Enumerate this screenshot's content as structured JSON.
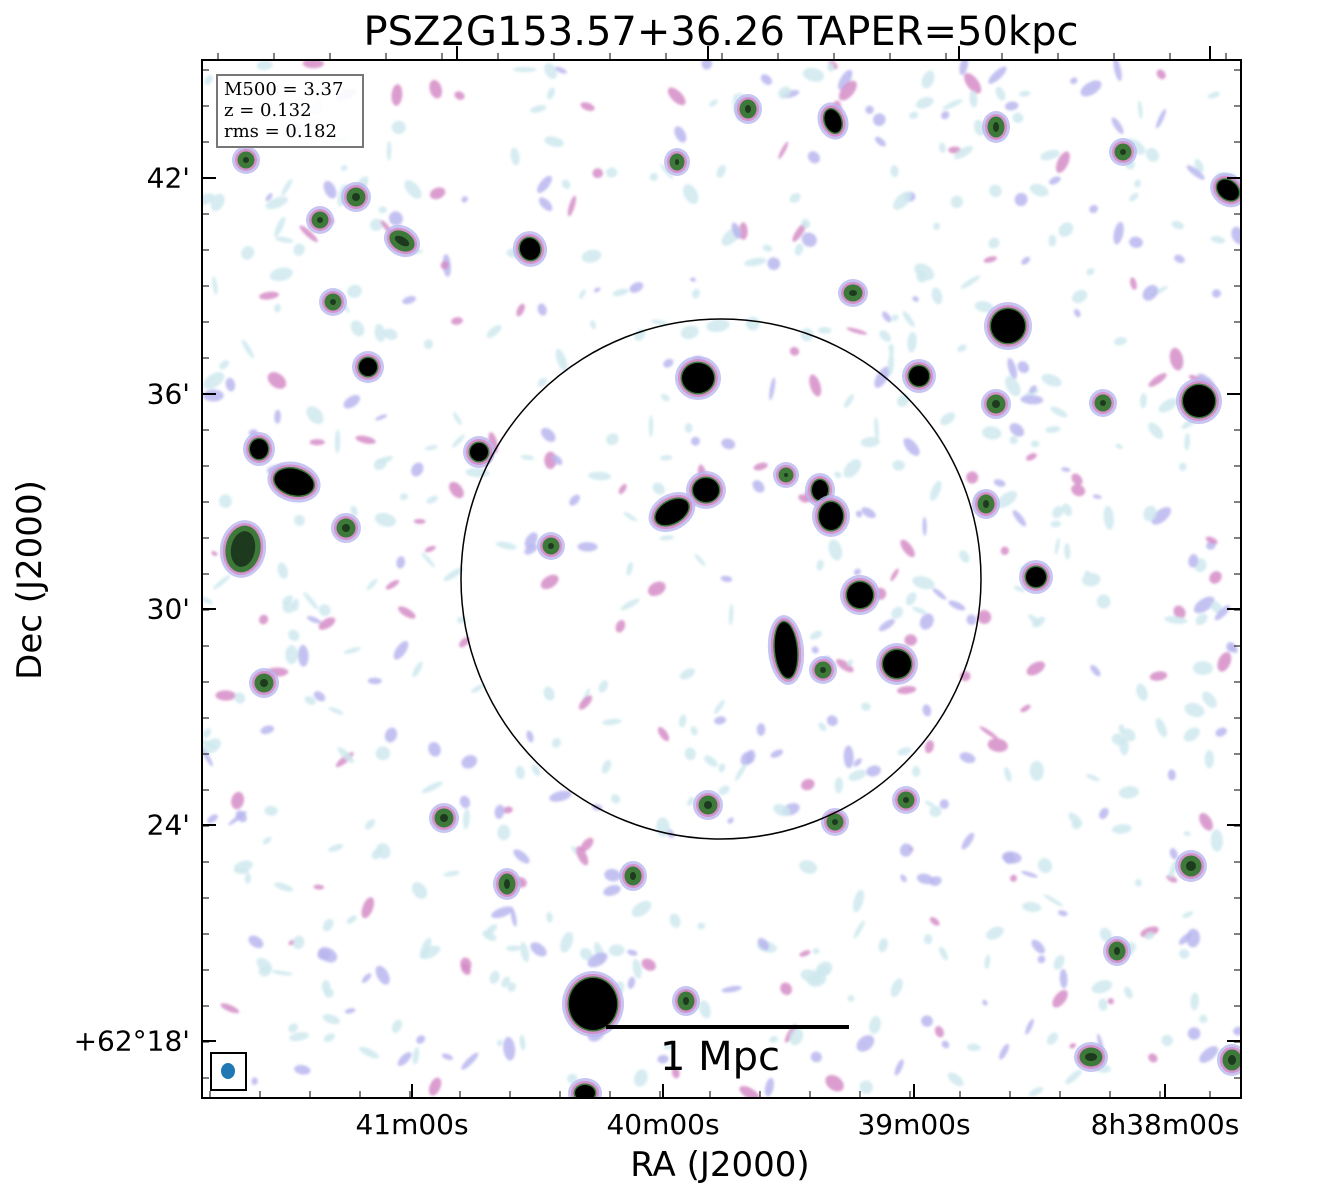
{
  "title": "PSZ2G153.57+36.26 TAPER=50kpc",
  "xlabel": "RA (J2000)",
  "ylabel": "Dec (J2000)",
  "y_ticks": [
    "42'",
    "36'",
    "30'",
    "24'",
    "+62°18'"
  ],
  "x_ticks": [
    "41m00s",
    "40m00s",
    "39m00s",
    "8h38m00s"
  ],
  "info": {
    "mass": "M500 = 3.37",
    "redshift": "z = 0.132",
    "rms": "rms = 0.182"
  },
  "scale_bar": "1 Mpc",
  "colors": {
    "faint": "#cfe9ee",
    "low": "#b9b6ee",
    "mid": "#d58cc7",
    "high": "#3d7a3a",
    "core": "#000000",
    "beam": "#1f77b4"
  }
}
